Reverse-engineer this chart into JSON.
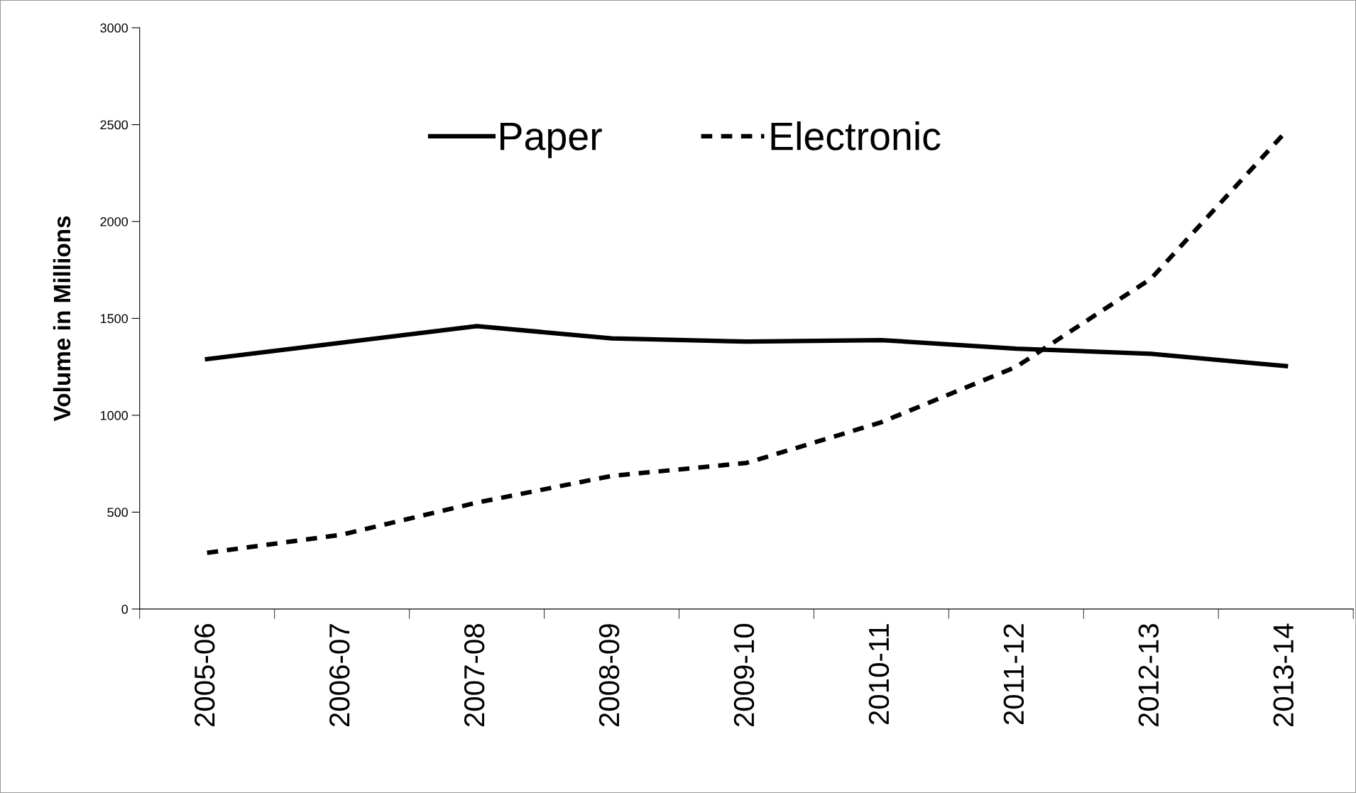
{
  "chart_data": {
    "type": "line",
    "ylabel": "Volume in Millions",
    "categories": [
      "2005-06",
      "2006-07",
      "2007-08",
      "2008-09",
      "2009-10",
      "2010-11",
      "2011-12",
      "2012-13",
      "2013-14"
    ],
    "series": [
      {
        "name": "Paper",
        "color": "#000000",
        "line_style": "solid",
        "values": [
          1290,
          1375,
          1460,
          1397,
          1380,
          1388,
          1344,
          1317,
          1254
        ]
      },
      {
        "name": "Electronic",
        "color": "#000000",
        "line_style": "dashed",
        "values": [
          290,
          384,
          549,
          687,
          754,
          964,
          1250,
          1705,
          2464
        ]
      }
    ],
    "ylim": [
      0,
      3000
    ],
    "yticks": [
      0,
      500,
      1000,
      1500,
      2000,
      2500,
      3000
    ],
    "grid": false,
    "legend": "top",
    "marker": "none"
  }
}
